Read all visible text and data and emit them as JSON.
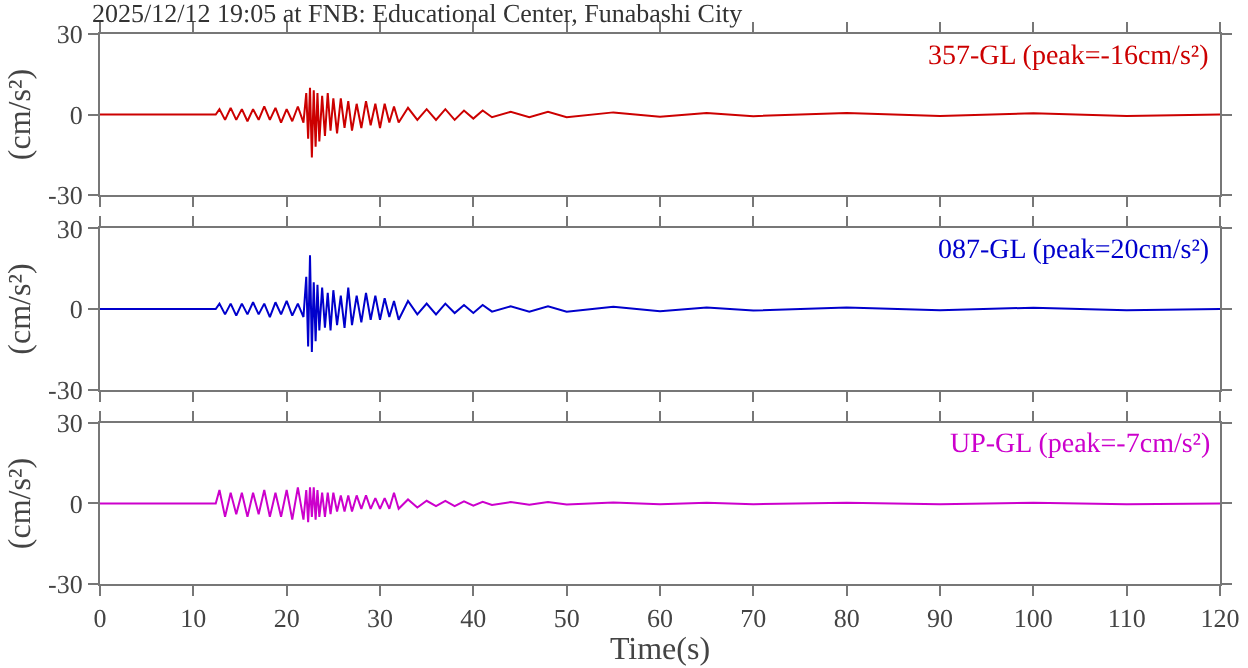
{
  "chart_data": [
    {
      "type": "line",
      "title": "2025/12/12 19:05 at FNB: Educational Center, Funabashi City",
      "ylabel": "(cm/s²)",
      "annotations": [
        "357-GL (peak=-16cm/s²)"
      ],
      "tick_labels": "y",
      "xlim": [
        0,
        120
      ],
      "xticks": [
        0,
        10,
        20,
        30,
        40,
        50,
        60,
        70,
        80,
        90,
        100,
        110,
        120
      ],
      "ylim": [
        -30,
        30
      ],
      "yticks": [
        -30,
        0,
        30
      ],
      "x": [
        0,
        6,
        12.4,
        12.8,
        13.4,
        14,
        14.6,
        15.2,
        15.8,
        16.4,
        17,
        17.6,
        18.2,
        18.8,
        19.4,
        20,
        20.6,
        21.2,
        21.8,
        22.1,
        22.3,
        22.5,
        22.7,
        22.9,
        23.1,
        23.3,
        23.5,
        23.8,
        24.1,
        24.4,
        24.7,
        25,
        25.4,
        25.8,
        26.2,
        26.6,
        27,
        27.5,
        28,
        28.5,
        29,
        29.5,
        30,
        30.5,
        31,
        31.5,
        32,
        33,
        34,
        35,
        36,
        37,
        38,
        39,
        40,
        41,
        42,
        44,
        46,
        48,
        50,
        55,
        60,
        65,
        70,
        80,
        90,
        100,
        110,
        120
      ],
      "series": [
        {
          "color": "#cc0000",
          "values": [
            0,
            0,
            0,
            2,
            -2,
            2.5,
            -2,
            2,
            -2.5,
            2,
            -2,
            3,
            -2,
            2.5,
            -3,
            2,
            -2.5,
            3,
            -3,
            8,
            -9,
            10,
            -16,
            9,
            -12,
            8,
            -10,
            7,
            -8,
            8,
            -6,
            6,
            -7,
            6,
            -5,
            5,
            -6,
            4,
            -5,
            5,
            -4,
            4,
            -5,
            4,
            -3,
            3,
            -3,
            2.5,
            -2,
            2,
            -2,
            2,
            -2,
            1.5,
            -1.5,
            1.5,
            -1,
            1,
            -1,
            1,
            -1,
            0.8,
            -0.8,
            0.6,
            -0.6,
            0.6,
            -0.5,
            0.5,
            -0.5,
            0
          ]
        }
      ]
    },
    {
      "type": "line",
      "ylabel": "(cm/s²)",
      "annotations": [
        "087-GL (peak=20cm/s²)"
      ],
      "tick_labels": "y",
      "xlim": [
        0,
        120
      ],
      "xticks": [
        0,
        10,
        20,
        30,
        40,
        50,
        60,
        70,
        80,
        90,
        100,
        110,
        120
      ],
      "ylim": [
        -30,
        30
      ],
      "yticks": [
        -30,
        0,
        30
      ],
      "x": [
        0,
        6,
        12.4,
        12.8,
        13.4,
        14,
        14.6,
        15.2,
        15.8,
        16.4,
        17,
        17.6,
        18.2,
        18.8,
        19.4,
        20,
        20.6,
        21.2,
        21.8,
        22.1,
        22.3,
        22.5,
        22.7,
        22.9,
        23.1,
        23.3,
        23.5,
        23.8,
        24.1,
        24.4,
        24.7,
        25,
        25.4,
        25.8,
        26.2,
        26.6,
        27,
        27.5,
        28,
        28.5,
        29,
        29.5,
        30,
        30.5,
        31,
        31.5,
        32,
        33,
        34,
        35,
        36,
        37,
        38,
        39,
        40,
        41,
        42,
        44,
        46,
        48,
        50,
        55,
        60,
        65,
        70,
        80,
        90,
        100,
        110,
        120
      ],
      "series": [
        {
          "color": "#0000cc",
          "values": [
            0,
            0,
            0,
            2,
            -2,
            2,
            -2.5,
            2,
            -2,
            2.5,
            -2,
            2,
            -3,
            2.5,
            -2,
            3,
            -2.5,
            2,
            -3,
            12,
            -14,
            20,
            -16,
            10,
            -12,
            9,
            -8,
            8,
            -7,
            6,
            -8,
            7,
            -6,
            5,
            -7,
            8,
            -6,
            5,
            -5,
            6,
            -4,
            5,
            -4,
            4,
            -3,
            3,
            -4,
            3,
            -2,
            2,
            -2,
            2,
            -1.5,
            1.5,
            -1.5,
            1.5,
            -1,
            1,
            -1,
            1,
            -1,
            0.8,
            -0.8,
            0.6,
            -0.6,
            0.6,
            -0.5,
            0.5,
            -0.5,
            0
          ]
        }
      ]
    },
    {
      "type": "line",
      "ylabel": "(cm/s²)",
      "xlabel": "Time(s)",
      "annotations": [
        "UP-GL (peak=-7cm/s²)"
      ],
      "xlim": [
        0,
        120
      ],
      "xticks": [
        0,
        10,
        20,
        30,
        40,
        50,
        60,
        70,
        80,
        90,
        100,
        110,
        120
      ],
      "ylim": [
        -30,
        30
      ],
      "yticks": [
        -30,
        0,
        30
      ],
      "x": [
        0,
        6,
        12.4,
        12.8,
        13.4,
        14,
        14.6,
        15.2,
        15.8,
        16.4,
        17,
        17.6,
        18.2,
        18.8,
        19.4,
        20,
        20.6,
        21.2,
        21.8,
        22.1,
        22.3,
        22.5,
        22.7,
        22.9,
        23.1,
        23.3,
        23.5,
        23.8,
        24.1,
        24.4,
        24.7,
        25,
        25.4,
        25.8,
        26.2,
        26.6,
        27,
        27.5,
        28,
        28.5,
        29,
        29.5,
        30,
        30.5,
        31,
        31.5,
        32,
        33,
        34,
        35,
        36,
        37,
        38,
        39,
        40,
        41,
        42,
        44,
        46,
        48,
        50,
        55,
        60,
        65,
        70,
        80,
        90,
        100,
        110,
        120
      ],
      "series": [
        {
          "color": "#cc00cc",
          "values": [
            0,
            0,
            0,
            5,
            -5,
            4,
            -4,
            4,
            -5,
            4,
            -4,
            5,
            -5,
            4,
            -5,
            5,
            -6,
            6,
            -6,
            5,
            -7,
            6,
            -5,
            6,
            -6,
            5,
            -5,
            4,
            -5,
            4,
            -4,
            4,
            -3,
            3,
            -3,
            3,
            -3,
            3,
            -2,
            3,
            -2,
            2,
            -2,
            2,
            -2,
            4,
            -2,
            1.5,
            -1.5,
            1,
            -1,
            1,
            -1,
            0.8,
            -0.8,
            0.6,
            -0.6,
            0.5,
            -0.5,
            0.5,
            -0.4,
            0.4,
            -0.3,
            0.3,
            -0.3,
            0.3,
            -0.3,
            0.3,
            -0.3,
            0
          ]
        }
      ]
    }
  ]
}
